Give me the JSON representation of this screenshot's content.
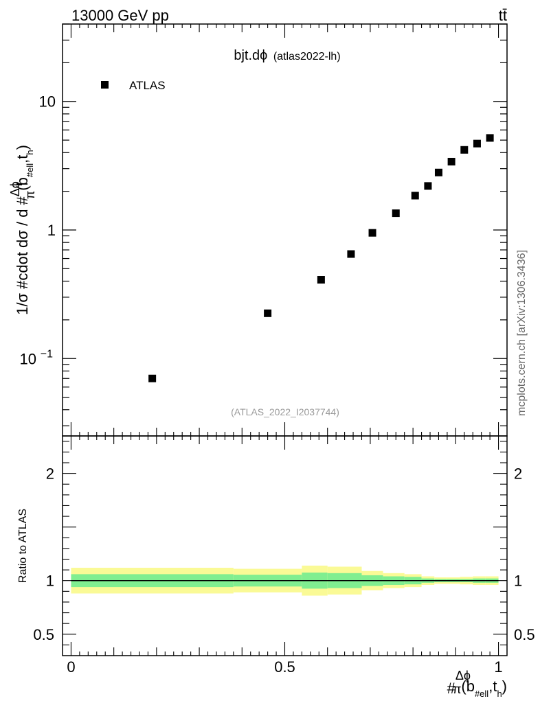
{
  "header": {
    "energy_label": "13000 GeV pp",
    "process_label": "tt̄",
    "plot_title_main": "bjt.dϕ",
    "plot_title_sub": "(atlas2022-lh)",
    "watermark": "mcplots.cern.ch [arXiv:1306.3436]",
    "analysis_id": "(ATLAS_2022_I2037744)"
  },
  "legend": {
    "entries": [
      "ATLAS"
    ],
    "position": "top-left"
  },
  "colors": {
    "marker": "#000000",
    "band_inner": "#80ee90",
    "band_outer": "#fafa96",
    "analysis_text": "#999999",
    "watermark_text": "#666666"
  },
  "chart_data": [
    {
      "type": "scatter",
      "panel": "main",
      "ylabel_parts": [
        "1/σ #cdot dσ / d #",
        "Δϕ",
        "π",
        "(b",
        "#ell",
        ",t",
        "h",
        ")"
      ],
      "yscale": "log",
      "ylim": [
        0.025,
        40
      ],
      "xlim": [
        -0.02,
        1.02
      ],
      "yticks": [
        {
          "value": 10,
          "label": "10"
        },
        {
          "value": 1,
          "label": "1"
        },
        {
          "value": 0.1,
          "label": "10",
          "exponent": "−1"
        }
      ],
      "series": [
        {
          "name": "ATLAS",
          "x": [
            0.19,
            0.46,
            0.585,
            0.655,
            0.705,
            0.76,
            0.805,
            0.835,
            0.86,
            0.89,
            0.92,
            0.95,
            0.98
          ],
          "y": [
            0.07,
            0.225,
            0.41,
            0.65,
            0.95,
            1.35,
            1.85,
            2.2,
            2.8,
            3.4,
            4.2,
            4.7,
            5.2
          ]
        }
      ]
    },
    {
      "type": "area",
      "panel": "ratio",
      "ylabel": "Ratio to ATLAS",
      "ylim": [
        0.3,
        2.35
      ],
      "xlim": [
        -0.02,
        1.02
      ],
      "yticks": [
        {
          "value": 2,
          "label": "2"
        },
        {
          "value": 1,
          "label": "1"
        },
        {
          "value": 0.5,
          "label": "0.5"
        }
      ],
      "xticks": [
        {
          "value": 0,
          "label": "0"
        },
        {
          "value": 0.5,
          "label": "0.5"
        },
        {
          "value": 1,
          "label": "1"
        }
      ],
      "xlabel_parts": [
        "#",
        "Δϕ",
        "π",
        "(b",
        "#ell",
        ",t",
        "h",
        ")"
      ],
      "reference_line": 1,
      "band_edges": [
        0,
        0.38,
        0.54,
        0.6,
        0.68,
        0.73,
        0.78,
        0.82,
        0.85,
        0.88,
        0.91,
        0.94,
        0.97,
        1.0
      ],
      "inner_band": [
        0.06,
        0.055,
        0.075,
        0.07,
        0.05,
        0.04,
        0.035,
        0.02,
        0.015,
        0.015,
        0.015,
        0.02,
        0.02
      ],
      "outer_band": [
        0.12,
        0.11,
        0.14,
        0.13,
        0.09,
        0.07,
        0.06,
        0.04,
        0.03,
        0.03,
        0.035,
        0.04,
        0.04
      ]
    }
  ]
}
